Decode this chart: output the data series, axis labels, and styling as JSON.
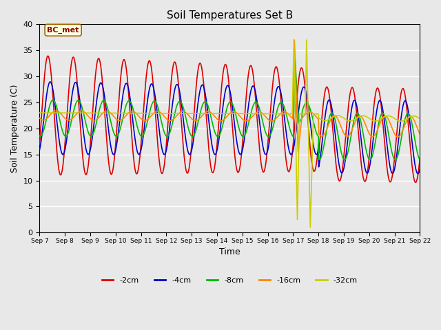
{
  "title": "Soil Temperatures Set B",
  "xlabel": "Time",
  "ylabel": "Soil Temperature (C)",
  "ylim": [
    0,
    40
  ],
  "bg_color": "#e8e8e8",
  "fig_color": "#e8e8e8",
  "series_colors": {
    "-2cm": "#dd0000",
    "-4cm": "#0000cc",
    "-8cm": "#00bb00",
    "-16cm": "#ff8800",
    "-32cm": "#cccc00"
  },
  "tick_labels": [
    "Sep 7",
    "Sep 8",
    "Sep 9",
    "Sep 10",
    "Sep 11",
    "Sep 12",
    "Sep 13",
    "Sep 14",
    "Sep 15",
    "Sep 16",
    "Sep 17",
    "Sep 18",
    "Sep 19",
    "Sep 20",
    "Sep 21",
    "Sep 22"
  ],
  "annotation_text": "BC_met",
  "lw": 1.2
}
